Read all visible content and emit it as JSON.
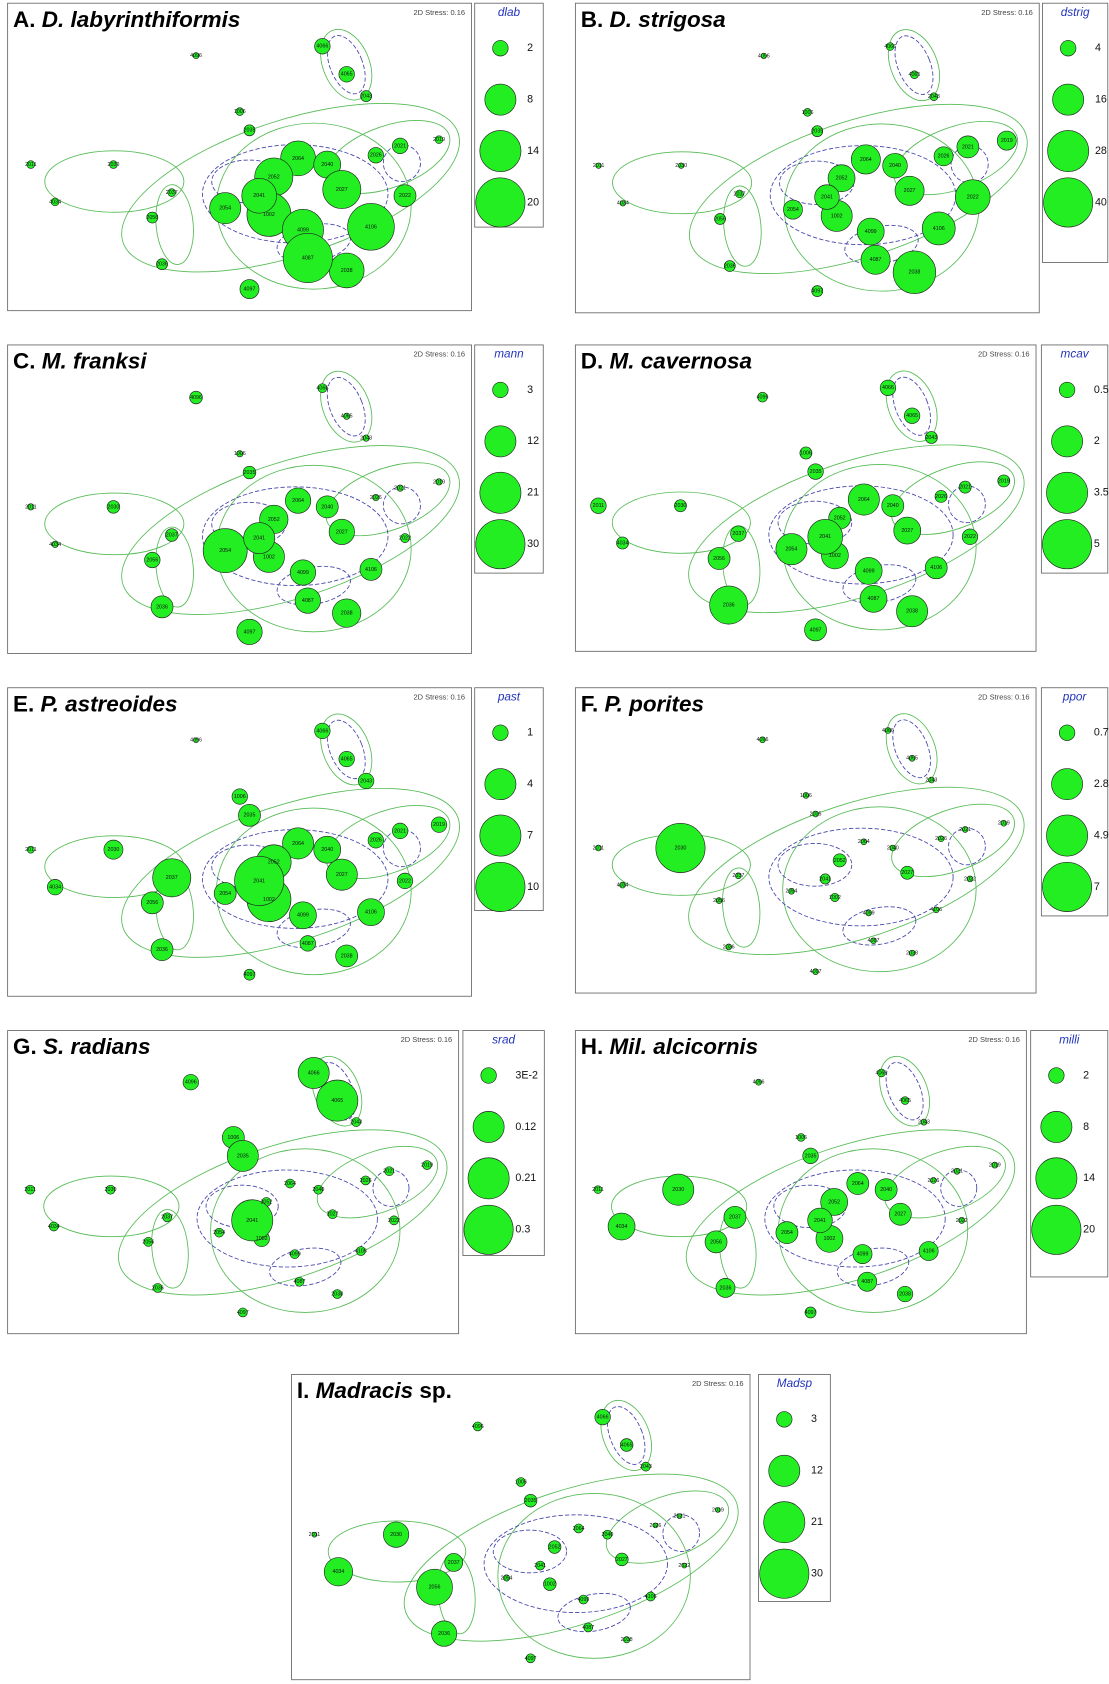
{
  "chart_data": [
    {
      "type": "bubble",
      "letter": "A.",
      "title": "D. labyrinthiformis",
      "stress_label": "2D Stress: 0.16",
      "labels": [
        "2011",
        "4034",
        "2030",
        "2037",
        "2056",
        "2036",
        "4096",
        "4066",
        "4065",
        "2043",
        "2019",
        "2021",
        "2022",
        "2026",
        "1006",
        "2035",
        "2064",
        "2040",
        "2052",
        "2054",
        "1002",
        "4099",
        "2038",
        "4087",
        "4097",
        "2041",
        "2027",
        "4106"
      ],
      "x": [
        8,
        13,
        25,
        37,
        33,
        35,
        42,
        68,
        73,
        77,
        92,
        84,
        85,
        79,
        51,
        53,
        63,
        69,
        58,
        48,
        57,
        64,
        73,
        65,
        53,
        55,
        72,
        78
      ],
      "y": [
        52,
        64,
        52,
        61,
        69,
        84,
        17,
        14,
        23,
        30,
        44,
        46,
        62,
        49,
        35,
        41,
        50,
        52,
        56,
        66,
        68,
        73,
        86,
        82,
        92,
        62,
        60,
        72
      ],
      "sizes": [
        0.5,
        0.5,
        0.5,
        0.5,
        1,
        1,
        0.3,
        2,
        2,
        1,
        0.5,
        2,
        4,
        2,
        0.5,
        1,
        10,
        6,
        12,
        8,
        16,
        14,
        10,
        20,
        3,
        10,
        12,
        18
      ],
      "size_legend": {
        "title": "dlab",
        "values": [
          2,
          8,
          14,
          20
        ]
      }
    },
    {
      "type": "bubble",
      "letter": "B.",
      "title": "D. strigosa",
      "stress_label": "2D Stress: 0.16",
      "labels": [
        "2011",
        "4034",
        "2030",
        "2037",
        "2056",
        "2036",
        "4096",
        "4066",
        "4065",
        "2043",
        "2019",
        "2021",
        "2022",
        "2026",
        "1006",
        "2035",
        "2064",
        "2040",
        "2052",
        "2054",
        "1002",
        "4099",
        "2038",
        "4087",
        "4097",
        "2041",
        "2027",
        "4106"
      ],
      "x": [
        8,
        13,
        25,
        37,
        33,
        35,
        42,
        68,
        73,
        77,
        92,
        84,
        85,
        79,
        51,
        53,
        63,
        69,
        58,
        48,
        57,
        64,
        73,
        65,
        53,
        55,
        72,
        78
      ],
      "y": [
        52,
        64,
        52,
        61,
        69,
        84,
        17,
        14,
        23,
        30,
        44,
        46,
        62,
        49,
        35,
        41,
        50,
        52,
        56,
        66,
        68,
        73,
        86,
        82,
        92,
        62,
        60,
        72
      ],
      "sizes": [
        0.5,
        0.5,
        0.5,
        1,
        2,
        2,
        0.5,
        1,
        1,
        1,
        6,
        8,
        20,
        6,
        1,
        2,
        14,
        10,
        12,
        6,
        16,
        12,
        30,
        14,
        2,
        10,
        14,
        18
      ],
      "size_legend": {
        "title": "dstrig",
        "values": [
          4,
          16,
          28,
          40
        ]
      }
    },
    {
      "type": "bubble",
      "letter": "C.",
      "title": "M. franksi",
      "stress_label": "2D Stress: 0.16",
      "labels": [
        "2011",
        "4034",
        "2030",
        "2037",
        "2056",
        "2036",
        "4096",
        "4066",
        "4065",
        "2043",
        "2019",
        "2021",
        "2022",
        "2026",
        "1006",
        "2035",
        "2064",
        "2040",
        "2052",
        "2054",
        "1002",
        "4099",
        "2038",
        "4087",
        "4097",
        "2041",
        "2027",
        "4106"
      ],
      "x": [
        8,
        13,
        25,
        37,
        33,
        35,
        42,
        68,
        73,
        77,
        92,
        84,
        85,
        79,
        51,
        53,
        63,
        69,
        58,
        48,
        57,
        64,
        73,
        65,
        53,
        55,
        72,
        78
      ],
      "y": [
        52,
        64,
        52,
        61,
        69,
        84,
        17,
        14,
        23,
        30,
        44,
        46,
        62,
        49,
        35,
        41,
        50,
        52,
        56,
        66,
        68,
        73,
        86,
        82,
        92,
        62,
        60,
        72
      ],
      "sizes": [
        0.5,
        0.5,
        2,
        2,
        3,
        6,
        2,
        1,
        0.5,
        0.5,
        0.5,
        0.5,
        1,
        0.5,
        0.5,
        2,
        8,
        6,
        10,
        24,
        12,
        8,
        10,
        8,
        8,
        12,
        8,
        6
      ],
      "size_legend": {
        "title": "mann",
        "values": [
          3,
          12,
          21,
          30
        ]
      }
    },
    {
      "type": "bubble",
      "letter": "D.",
      "title": "M. cavernosa",
      "stress_label": "2D Stress: 0.16",
      "labels": [
        "2011",
        "4034",
        "2030",
        "2037",
        "2056",
        "2036",
        "4096",
        "4066",
        "4065",
        "2043",
        "2019",
        "2021",
        "2022",
        "2026",
        "1006",
        "2035",
        "2064",
        "2040",
        "2052",
        "2054",
        "1002",
        "4099",
        "2038",
        "4087",
        "4097",
        "2041",
        "2027",
        "4106"
      ],
      "x": [
        8,
        13,
        25,
        37,
        33,
        35,
        42,
        68,
        73,
        77,
        92,
        84,
        85,
        79,
        51,
        53,
        63,
        69,
        58,
        48,
        57,
        64,
        73,
        65,
        53,
        55,
        72,
        78
      ],
      "y": [
        52,
        64,
        52,
        61,
        69,
        84,
        17,
        14,
        23,
        30,
        44,
        46,
        62,
        49,
        35,
        41,
        50,
        52,
        56,
        66,
        68,
        73,
        86,
        82,
        92,
        62,
        60,
        72
      ],
      "sizes": [
        0.5,
        0.3,
        0.3,
        0.5,
        1,
        3,
        0.2,
        0.5,
        0.5,
        0.3,
        0.3,
        0.3,
        0.5,
        0.3,
        0.3,
        0.5,
        2,
        1,
        1,
        2,
        1.5,
        1.5,
        2,
        1.5,
        1,
        2.5,
        1.5,
        1
      ],
      "size_legend": {
        "title": "mcav",
        "values": [
          0.5,
          2,
          3.5,
          5
        ]
      }
    },
    {
      "type": "bubble",
      "letter": "E.",
      "title": "P. astreoides",
      "stress_label": "2D Stress: 0.16",
      "labels": [
        "2011",
        "4034",
        "2030",
        "2037",
        "2056",
        "2036",
        "4096",
        "4066",
        "4065",
        "2043",
        "2019",
        "2021",
        "2022",
        "2026",
        "1006",
        "2035",
        "2064",
        "2040",
        "2052",
        "2054",
        "1002",
        "4099",
        "2038",
        "4087",
        "4097",
        "2041",
        "2027",
        "4106"
      ],
      "x": [
        8,
        13,
        25,
        37,
        33,
        35,
        42,
        68,
        73,
        77,
        92,
        84,
        85,
        79,
        51,
        53,
        63,
        69,
        58,
        48,
        57,
        64,
        73,
        65,
        53,
        55,
        72,
        78
      ],
      "y": [
        52,
        64,
        52,
        61,
        69,
        84,
        17,
        14,
        23,
        30,
        44,
        46,
        62,
        49,
        35,
        41,
        50,
        52,
        56,
        66,
        68,
        73,
        86,
        82,
        92,
        62,
        60,
        72
      ],
      "sizes": [
        0.2,
        1,
        1.5,
        6,
        2,
        2,
        0.1,
        1,
        1,
        1,
        1,
        1,
        1,
        1,
        1,
        2,
        4,
        3,
        5,
        2,
        8,
        3,
        2,
        1,
        0.5,
        10,
        4,
        3
      ],
      "size_legend": {
        "title": "past",
        "values": [
          1,
          4,
          7,
          10
        ]
      }
    },
    {
      "type": "bubble",
      "letter": "F.",
      "title": "P. porites",
      "stress_label": "2D Stress: 0.16",
      "labels": [
        "2011",
        "4034",
        "2030",
        "2037",
        "2056",
        "2036",
        "4096",
        "4066",
        "4065",
        "2043",
        "2019",
        "2021",
        "2022",
        "2026",
        "1006",
        "2035",
        "2064",
        "2040",
        "2052",
        "2054",
        "1002",
        "4099",
        "2038",
        "4087",
        "4097",
        "2041",
        "2027",
        "4106"
      ],
      "x": [
        8,
        13,
        25,
        37,
        33,
        35,
        42,
        68,
        73,
        77,
        92,
        84,
        85,
        79,
        51,
        53,
        63,
        69,
        58,
        48,
        57,
        64,
        73,
        65,
        53,
        55,
        72,
        78
      ],
      "y": [
        52,
        64,
        52,
        61,
        69,
        84,
        17,
        14,
        23,
        30,
        44,
        46,
        62,
        49,
        35,
        41,
        50,
        52,
        56,
        66,
        68,
        73,
        86,
        82,
        92,
        62,
        60,
        72
      ],
      "sizes": [
        0.1,
        0.1,
        7,
        0.1,
        0.1,
        0.1,
        0.1,
        0.1,
        0.1,
        0.1,
        0.1,
        0.1,
        0.1,
        0.1,
        0.1,
        0.1,
        0.1,
        0.1,
        0.5,
        0.1,
        0.2,
        0.1,
        0.1,
        0.1,
        0.1,
        0.3,
        0.5,
        0.1
      ],
      "size_legend": {
        "title": "ppor",
        "values": [
          0.7,
          2.8,
          4.9,
          7
        ]
      }
    },
    {
      "type": "bubble",
      "letter": "G.",
      "title": "S. radians",
      "stress_label": "2D Stress: 0.16",
      "labels": [
        "2011",
        "4034",
        "2030",
        "2037",
        "2056",
        "2036",
        "4096",
        "4066",
        "4065",
        "2043",
        "2019",
        "2021",
        "2022",
        "2026",
        "1006",
        "2035",
        "2064",
        "2040",
        "2052",
        "2054",
        "1002",
        "4099",
        "2038",
        "4087",
        "4097",
        "2041",
        "2027",
        "4106"
      ],
      "x": [
        8,
        13,
        25,
        37,
        33,
        35,
        42,
        68,
        73,
        77,
        92,
        84,
        85,
        79,
        51,
        53,
        63,
        69,
        58,
        48,
        57,
        64,
        73,
        65,
        53,
        55,
        72,
        78
      ],
      "y": [
        52,
        64,
        52,
        61,
        69,
        84,
        17,
        14,
        23,
        30,
        44,
        46,
        62,
        49,
        35,
        41,
        50,
        52,
        56,
        66,
        68,
        73,
        86,
        82,
        92,
        62,
        60,
        72
      ],
      "sizes": [
        0.01,
        0.01,
        0.01,
        0.01,
        0.01,
        0.01,
        0.03,
        0.12,
        0.21,
        0.01,
        0.01,
        0.01,
        0.01,
        0.01,
        0.06,
        0.12,
        0.01,
        0.01,
        0.01,
        0.01,
        0.03,
        0.01,
        0.01,
        0.01,
        0.01,
        0.21,
        0.01,
        0.01
      ],
      "size_legend": {
        "title": "srad",
        "values": [
          {
            "value": 0.03,
            "label": "3E-2"
          },
          0.12,
          0.21,
          0.3
        ]
      }
    },
    {
      "type": "bubble",
      "letter": "H.",
      "title": "Mil. alcicornis",
      "stress_label": "2D Stress: 0.16",
      "labels": [
        "2011",
        "4034",
        "2030",
        "2037",
        "2056",
        "2036",
        "4096",
        "4066",
        "4065",
        "2043",
        "2019",
        "2021",
        "2022",
        "2026",
        "1006",
        "2035",
        "2064",
        "2040",
        "2052",
        "2054",
        "1002",
        "4099",
        "2038",
        "4087",
        "4097",
        "2041",
        "2027",
        "4106"
      ],
      "x": [
        8,
        13,
        25,
        37,
        33,
        35,
        42,
        68,
        73,
        77,
        92,
        84,
        85,
        79,
        51,
        53,
        63,
        69,
        58,
        48,
        57,
        64,
        73,
        65,
        53,
        55,
        72,
        78
      ],
      "y": [
        52,
        64,
        52,
        61,
        69,
        84,
        17,
        14,
        23,
        30,
        44,
        46,
        62,
        49,
        35,
        41,
        50,
        52,
        56,
        66,
        68,
        73,
        86,
        82,
        92,
        62,
        60,
        72
      ],
      "sizes": [
        0.5,
        6,
        8,
        4,
        4,
        3,
        0.3,
        0.5,
        0.5,
        0.3,
        0.3,
        0.3,
        0.3,
        0.3,
        0.5,
        2,
        4,
        4,
        6,
        4,
        6,
        3,
        2,
        3,
        1,
        5,
        4,
        3
      ],
      "size_legend": {
        "title": "milli",
        "values": [
          2,
          8,
          14,
          20
        ]
      }
    },
    {
      "type": "bubble",
      "letter": "I.",
      "title": "Madracis",
      "title_suffix": "sp.",
      "stress_label": "2D Stress: 0.16",
      "labels": [
        "2011",
        "4034",
        "2030",
        "2037",
        "2056",
        "2036",
        "4096",
        "4066",
        "4065",
        "2043",
        "2019",
        "2021",
        "2022",
        "2026",
        "1006",
        "2035",
        "2064",
        "2040",
        "2052",
        "2054",
        "1002",
        "4099",
        "2038",
        "4087",
        "4097",
        "2041",
        "2027",
        "4106"
      ],
      "x": [
        8,
        13,
        25,
        37,
        33,
        35,
        42,
        68,
        73,
        77,
        92,
        84,
        85,
        79,
        51,
        53,
        63,
        69,
        58,
        48,
        57,
        64,
        73,
        65,
        53,
        55,
        72,
        78
      ],
      "y": [
        52,
        64,
        52,
        61,
        69,
        84,
        17,
        14,
        23,
        30,
        44,
        46,
        62,
        49,
        35,
        41,
        50,
        52,
        56,
        66,
        68,
        73,
        86,
        82,
        92,
        62,
        60,
        72
      ],
      "sizes": [
        0.3,
        10,
        8,
        4,
        16,
        8,
        1,
        3,
        2,
        1,
        0.3,
        0.3,
        0.3,
        0.3,
        1,
        2,
        1,
        1,
        2,
        0.5,
        2,
        1,
        0.5,
        1,
        1,
        1,
        2,
        1
      ],
      "size_legend": {
        "title": "Madsp",
        "values": [
          3,
          12,
          21,
          30
        ]
      }
    }
  ]
}
